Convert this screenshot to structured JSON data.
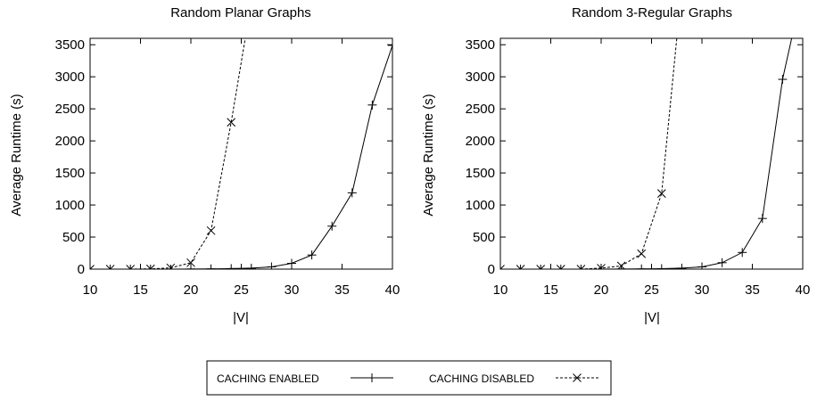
{
  "chart_data": [
    {
      "type": "line",
      "title": "Random Planar Graphs",
      "xlabel": "|V|",
      "ylabel": "Average Runtime (s)",
      "xlim": [
        10,
        40
      ],
      "ylim": [
        0,
        3600
      ],
      "xticks": [
        10,
        15,
        20,
        25,
        30,
        35,
        40
      ],
      "yticks": [
        0,
        500,
        1000,
        1500,
        2000,
        2500,
        3000,
        3500
      ],
      "grid": false,
      "series": [
        {
          "name": "CACHING ENABLED",
          "marker": "plus",
          "dash": "solid",
          "x": [
            10,
            12,
            14,
            16,
            18,
            20,
            22,
            24,
            26,
            28,
            30,
            32,
            34,
            36,
            38,
            40
          ],
          "y": [
            0,
            0,
            0,
            0,
            0,
            2,
            4,
            8,
            15,
            35,
            90,
            220,
            670,
            1190,
            2560,
            3490
          ]
        },
        {
          "name": "CACHING DISABLED",
          "marker": "x",
          "dash": "dashed",
          "x": [
            10,
            12,
            14,
            16,
            18,
            20,
            22,
            24,
            25.4
          ],
          "y": [
            0,
            0,
            0,
            4,
            20,
            100,
            600,
            2290,
            3600
          ]
        }
      ]
    },
    {
      "type": "line",
      "title": "Random 3-Regular Graphs",
      "xlabel": "|V|",
      "ylabel": "Average Runtime (s)",
      "xlim": [
        10,
        40
      ],
      "ylim": [
        0,
        3600
      ],
      "xticks": [
        10,
        15,
        20,
        25,
        30,
        35,
        40
      ],
      "yticks": [
        0,
        500,
        1000,
        1500,
        2000,
        2500,
        3000,
        3500
      ],
      "grid": false,
      "series": [
        {
          "name": "CACHING ENABLED",
          "marker": "plus",
          "dash": "solid",
          "x": [
            10,
            12,
            14,
            16,
            18,
            20,
            22,
            24,
            26,
            28,
            30,
            32,
            34,
            36,
            38,
            38.9
          ],
          "y": [
            0,
            0,
            0,
            0,
            0,
            0,
            1,
            3,
            7,
            15,
            35,
            100,
            260,
            790,
            2960,
            3600
          ]
        },
        {
          "name": "CACHING DISABLED",
          "marker": "x",
          "dash": "dashed",
          "x": [
            10,
            12,
            14,
            16,
            18,
            20,
            22,
            24,
            26,
            27.5
          ],
          "y": [
            0,
            0,
            0,
            0,
            0,
            15,
            50,
            240,
            1180,
            3600
          ]
        }
      ]
    }
  ],
  "legend": {
    "placement": "bottom-center",
    "entries": [
      {
        "label": "CACHING ENABLED",
        "marker": "plus",
        "dash": "solid"
      },
      {
        "label": "CACHING DISABLED",
        "marker": "x",
        "dash": "dashed"
      }
    ]
  }
}
